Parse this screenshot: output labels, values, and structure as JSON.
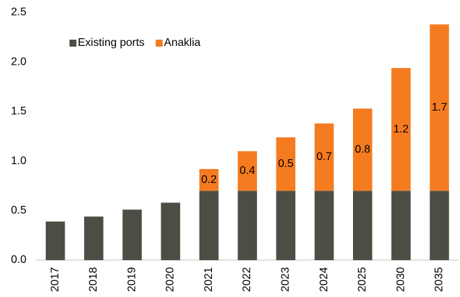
{
  "chart_data": {
    "type": "bar",
    "stacked": true,
    "categories": [
      "2017",
      "2018",
      "2019",
      "2020",
      "2021",
      "2022",
      "2023",
      "2024",
      "2025",
      "2030",
      "2035"
    ],
    "series": [
      {
        "name": "Existing ports",
        "color": "#4d4d45",
        "values": [
          0.39,
          0.44,
          0.51,
          0.58,
          0.7,
          0.7,
          0.7,
          0.7,
          0.7,
          0.7,
          0.7
        ]
      },
      {
        "name": "Anaklia",
        "color": "#f47b20",
        "values": [
          null,
          null,
          null,
          null,
          0.22,
          0.4,
          0.54,
          0.68,
          0.83,
          1.24,
          1.68
        ],
        "value_labels": [
          null,
          null,
          null,
          null,
          "0.2",
          "0.4",
          "0.5",
          "0.7",
          "0.8",
          "1.2",
          "1.7"
        ]
      }
    ],
    "ylim": [
      0,
      2.5
    ],
    "yticks": [
      {
        "value": 0,
        "label": "0.0"
      },
      0.5,
      {
        "value": 1,
        "label": "1.0"
      },
      1.5,
      {
        "value": 2,
        "label": "2.0"
      },
      2.5
    ],
    "legend": "upper left",
    "grid": false
  }
}
